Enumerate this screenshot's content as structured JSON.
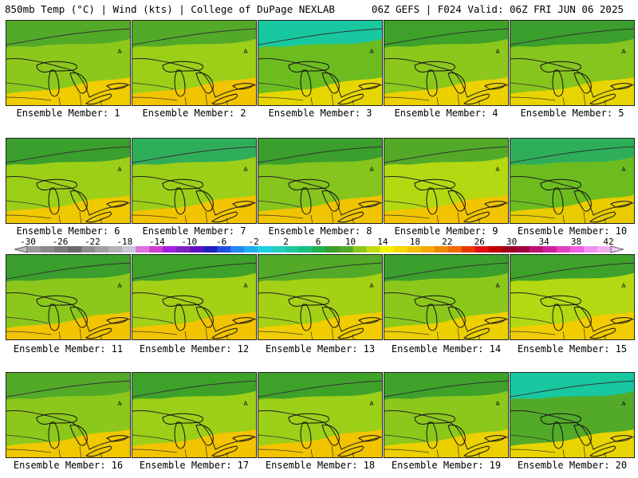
{
  "header": {
    "left": "850mb Temp (°C) | Wind (kts) | College of DuPage NEXLAB",
    "right": "06Z GEFS | F024 Valid: 06Z FRI JUN 06 2025"
  },
  "members": [
    {
      "label": "Ensemble Member: 1",
      "north": "#52aa28",
      "mid": "#8cc81c",
      "south": "#f0cc00"
    },
    {
      "label": "Ensemble Member: 2",
      "north": "#52aa28",
      "mid": "#9ccf18",
      "south": "#f2c400"
    },
    {
      "label": "Ensemble Member: 3",
      "north": "#18c8a0",
      "mid": "#6cbc20",
      "south": "#e6d600"
    },
    {
      "label": "Ensemble Member: 4",
      "north": "#3ea22a",
      "mid": "#8cc81c",
      "south": "#ecd000"
    },
    {
      "label": "Ensemble Member: 5",
      "north": "#3a9f2c",
      "mid": "#86c41e",
      "south": "#e8d400"
    },
    {
      "label": "Ensemble Member: 6",
      "north": "#3a9f2c",
      "mid": "#9ccf18",
      "south": "#f0c800"
    },
    {
      "label": "Ensemble Member: 7",
      "north": "#2fae5a",
      "mid": "#9ccf18",
      "south": "#f2c400"
    },
    {
      "label": "Ensemble Member: 8",
      "north": "#3a9f2c",
      "mid": "#86c41e",
      "south": "#f0c400"
    },
    {
      "label": "Ensemble Member: 9",
      "north": "#52aa28",
      "mid": "#b4d812",
      "south": "#f2c400"
    },
    {
      "label": "Ensemble Member: 10",
      "north": "#2fae5a",
      "mid": "#6cbc20",
      "south": "#e8cc00"
    },
    {
      "label": "Ensemble Member: 11",
      "north": "#3a9f2c",
      "mid": "#8cc81c",
      "south": "#f2c400"
    },
    {
      "label": "Ensemble Member: 12",
      "north": "#3ea22a",
      "mid": "#a4d016",
      "south": "#f2c400"
    },
    {
      "label": "Ensemble Member: 13",
      "north": "#52aa28",
      "mid": "#a4d016",
      "south": "#f0cc00"
    },
    {
      "label": "Ensemble Member: 14",
      "north": "#3a9f2c",
      "mid": "#8cc81c",
      "south": "#ecd000"
    },
    {
      "label": "Ensemble Member: 15",
      "north": "#3ea22a",
      "mid": "#b4d812",
      "south": "#f0cc00"
    },
    {
      "label": "Ensemble Member: 16",
      "north": "#52aa28",
      "mid": "#8cc81c",
      "south": "#f0c800"
    },
    {
      "label": "Ensemble Member: 17",
      "north": "#3ea22a",
      "mid": "#9ccf18",
      "south": "#f2c400"
    },
    {
      "label": "Ensemble Member: 18",
      "north": "#3ea22a",
      "mid": "#9ccf18",
      "south": "#f2c400"
    },
    {
      "label": "Ensemble Member: 19",
      "north": "#3ea22a",
      "mid": "#8cc81c",
      "south": "#ecd000"
    },
    {
      "label": "Ensemble Member: 20",
      "north": "#18c8a0",
      "mid": "#52aa28",
      "south": "#e8d400"
    }
  ],
  "colorbar": {
    "labels": [
      "-30",
      "-26",
      "-22",
      "-18",
      "-14",
      "-10",
      "-6",
      "-2",
      "2",
      "6",
      "10",
      "14",
      "18",
      "22",
      "26",
      "30",
      "34",
      "38",
      "42"
    ],
    "colors": [
      "#9a9a9a",
      "#8a8a8a",
      "#7a7a7a",
      "#6a6a6a",
      "#8c8c8c",
      "#a0a0a0",
      "#b4b4b4",
      "#c8c8d8",
      "#e070e0",
      "#d040d0",
      "#a020e0",
      "#8020c0",
      "#6010c0",
      "#2020c0",
      "#2050e0",
      "#2088f0",
      "#20b0f0",
      "#20d0e0",
      "#20d0c0",
      "#20c8a0",
      "#18c080",
      "#20b050",
      "#3a9f2c",
      "#52aa28",
      "#8cc81c",
      "#c0dc10",
      "#f0f000",
      "#f4d800",
      "#f4c000",
      "#f4a800",
      "#f08800",
      "#f06a00",
      "#e83800",
      "#e01010",
      "#c00000",
      "#a00020",
      "#a00040",
      "#c01070",
      "#d020a0",
      "#e040c0",
      "#f060e0",
      "#f090f0",
      "#f0b0f0"
    ]
  }
}
